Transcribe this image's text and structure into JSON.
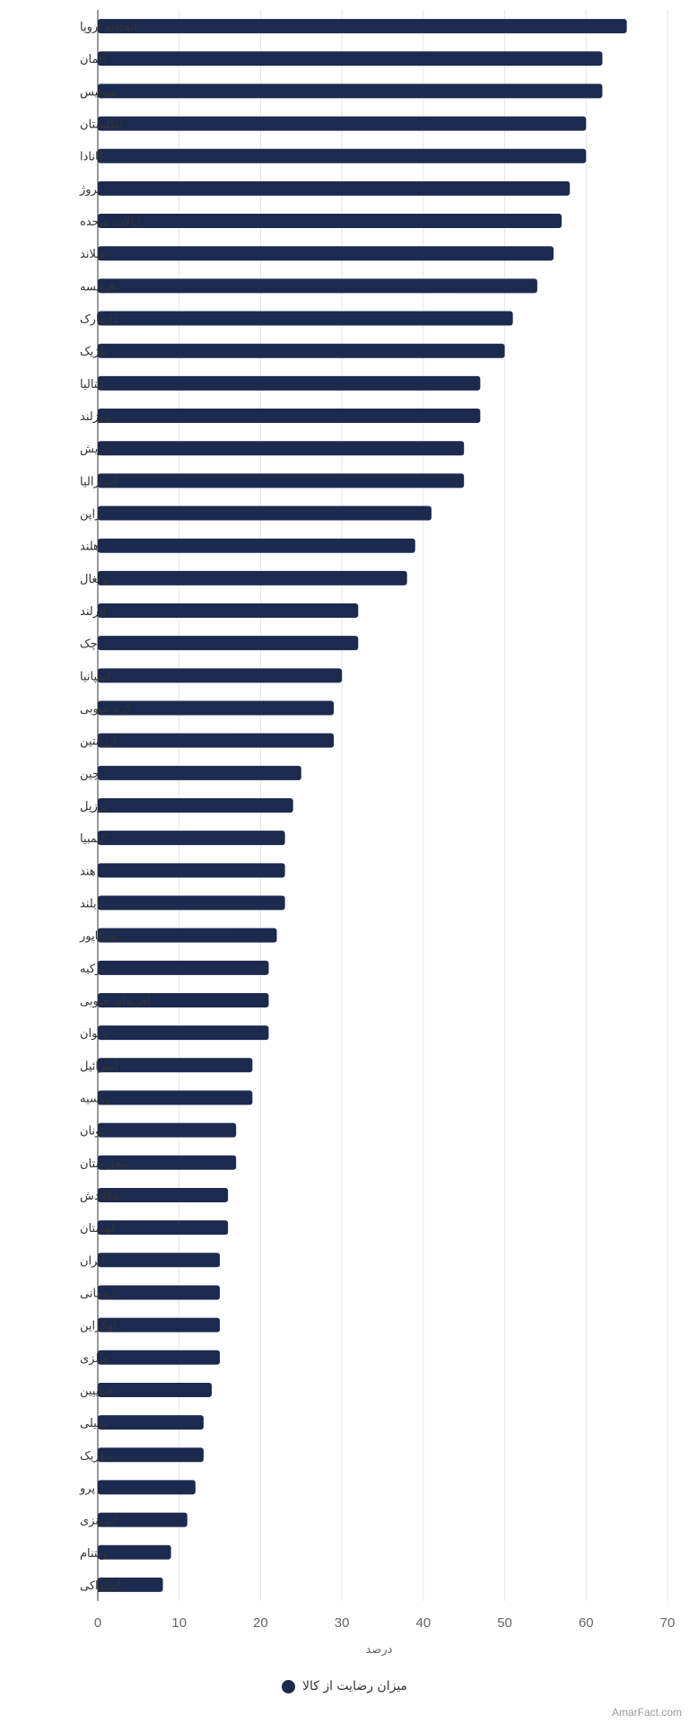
{
  "chart_data": {
    "type": "bar",
    "orientation": "horizontal",
    "categories": [
      "اتحادیه اروپا",
      "آلمان",
      "سوئیس",
      "انگلستان",
      "کانادا",
      "نروژ",
      "ایالات متحده",
      "فنلاند",
      "فرانسه",
      "دانمارک",
      "بلژیک",
      "ایتالیا",
      "نیوزلند",
      "اتریش",
      "استرالیا",
      "ژاپن",
      "هلند",
      "پرتغال",
      "ایرلند",
      "چک",
      "اسپانیا",
      "کره جنوبی",
      "آرژانتین",
      "چین",
      "برزیل",
      "کلمبیا",
      "هند",
      "تایلند",
      "سنگاپور",
      "ترکیه",
      "آفریقای جنوبی",
      "تایوان",
      "اسرائیل",
      "روسیه",
      "یونان",
      "مجارستان",
      "بنگلادش",
      "لهستان",
      "ایران",
      "رومانی",
      "اوکراین",
      "مالزی",
      "فیلیپین",
      "شیلی",
      "مکزیک",
      "پرو",
      "اندونزی",
      "ویتنام",
      "اسلواکی"
    ],
    "series": [
      {
        "name": "میزان رضایت از کالا",
        "color": "#1c2a4f",
        "values": [
          65,
          62,
          62,
          60,
          60,
          58,
          57,
          56,
          54,
          51,
          50,
          47,
          47,
          45,
          45,
          41,
          39,
          38,
          32,
          32,
          30,
          29,
          29,
          25,
          24,
          23,
          23,
          23,
          22,
          21,
          21,
          21,
          19,
          19,
          17,
          17,
          16,
          16,
          15,
          15,
          15,
          15,
          14,
          13,
          13,
          12,
          11,
          9,
          8
        ]
      }
    ],
    "xlabel": "درصد",
    "xlim": [
      0,
      70
    ],
    "xticks": [
      0,
      10,
      20,
      30,
      40,
      50,
      60,
      70
    ],
    "grid": true,
    "legend": "bottom-center"
  },
  "credit": "AmarFact.com"
}
